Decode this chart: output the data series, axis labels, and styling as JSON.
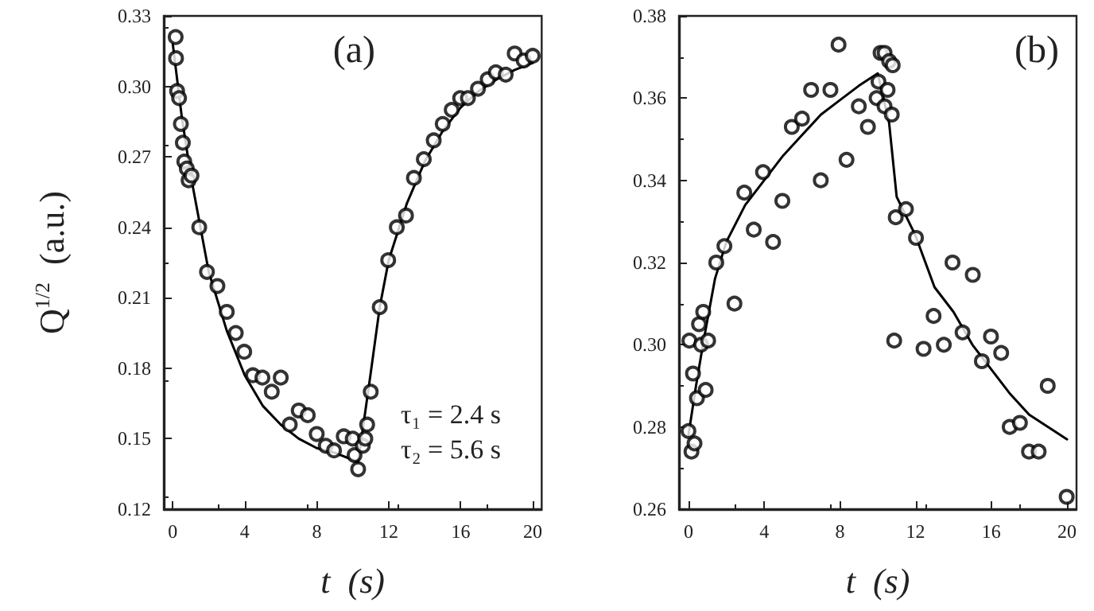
{
  "chart_data": [
    {
      "type": "scatter",
      "xlabel": "t  (s)",
      "ylabel": "Q$^{1/2}$  (a.u.)",
      "annotations": [
        "(a)",
        "τ₁ = 2.4 s",
        "τ₂ = 5.6 s"
      ],
      "xlim": [
        -0.5,
        20.5
      ],
      "xticks": [
        0,
        4,
        8,
        12,
        16,
        20
      ],
      "ylim": [
        0.12,
        0.33
      ],
      "yticks": [
        {
          "value": 0.12,
          "label": "0.12"
        },
        {
          "value": 0.15,
          "label": "0.15"
        },
        {
          "value": 0.18,
          "label": "0.18"
        },
        {
          "value": 0.21,
          "label": "0.21"
        },
        {
          "value": 0.24,
          "label": "0.24"
        },
        {
          "value": 0.27,
          "label": "0.27"
        },
        {
          "value": 0.3,
          "label": "0.30"
        },
        {
          "value": 0.33,
          "label": "0.33"
        }
      ],
      "series": [
        {
          "marker": "circle",
          "color": "#000000",
          "x": [
            0.16,
            0.18,
            0.24,
            0.35,
            0.45,
            0.56,
            0.64,
            0.78,
            0.88,
            1.04,
            1.47,
            1.9,
            2.48,
            3.0,
            3.5,
            3.97,
            4.45,
            4.98,
            5.5,
            6.0,
            6.5,
            7.0,
            7.5,
            8.0,
            8.5,
            8.96,
            9.5,
            10.0,
            10.1,
            10.3,
            10.56,
            10.7,
            10.8,
            11.0,
            11.5,
            11.97,
            12.45,
            12.96,
            13.4,
            13.95,
            14.5,
            15.0,
            15.5,
            15.97,
            16.4,
            16.96,
            17.5,
            17.95,
            18.5,
            19.0,
            19.5,
            20.0
          ],
          "values": [
            0.321,
            0.312,
            0.298,
            0.295,
            0.284,
            0.276,
            0.268,
            0.265,
            0.26,
            0.262,
            0.24,
            0.221,
            0.215,
            0.204,
            0.195,
            0.187,
            0.177,
            0.176,
            0.17,
            0.176,
            0.156,
            0.162,
            0.16,
            0.152,
            0.147,
            0.145,
            0.151,
            0.15,
            0.143,
            0.137,
            0.147,
            0.15,
            0.156,
            0.17,
            0.206,
            0.226,
            0.24,
            0.245,
            0.261,
            0.269,
            0.277,
            0.284,
            0.29,
            0.295,
            0.295,
            0.299,
            0.303,
            0.306,
            0.305,
            0.314,
            0.311,
            0.313
          ]
        },
        {
          "type": "line",
          "marker": "none",
          "line_style": "solid",
          "color": "#000000",
          "x": [
            0,
            0.5,
            1,
            2,
            3,
            4,
            5,
            6,
            7,
            8,
            9,
            10,
            10.3,
            11,
            11.5,
            12,
            13,
            14,
            15,
            16,
            17,
            18,
            19,
            20
          ],
          "values": [
            0.318,
            0.287,
            0.262,
            0.221,
            0.196,
            0.177,
            0.164,
            0.156,
            0.15,
            0.146,
            0.144,
            0.141,
            0.14,
            0.178,
            0.206,
            0.226,
            0.25,
            0.268,
            0.281,
            0.291,
            0.298,
            0.303,
            0.307,
            0.31
          ]
        }
      ]
    },
    {
      "type": "scatter",
      "xlabel": "t  (s)",
      "annotations": [
        "(b)"
      ],
      "xlim": [
        -0.5,
        20.5
      ],
      "xticks": [
        0,
        4,
        8,
        12,
        16,
        20
      ],
      "ylim": [
        0.26,
        0.38
      ],
      "yticks": [
        {
          "value": 0.26,
          "label": "0.26"
        },
        {
          "value": 0.28,
          "label": "0.28"
        },
        {
          "value": 0.3,
          "label": "0.30"
        },
        {
          "value": 0.32,
          "label": "0.32"
        },
        {
          "value": 0.34,
          "label": "0.34"
        },
        {
          "value": 0.36,
          "label": "0.36"
        },
        {
          "value": 0.38,
          "label": "0.38"
        }
      ],
      "series": [
        {
          "marker": "circle",
          "color": "#000000",
          "x": [
            0,
            0.05,
            0.16,
            0.24,
            0.32,
            0.45,
            0.56,
            0.67,
            0.78,
            0.91,
            1.04,
            1.47,
            1.9,
            2.43,
            2.95,
            3.45,
            3.94,
            4.47,
            4.96,
            5.46,
            6.0,
            6.48,
            6.99,
            7.5,
            7.93,
            8.35,
            9.0,
            9.48,
            9.94,
            10.04,
            10.15,
            10.36,
            10.36,
            10.52,
            10.6,
            10.74,
            10.79,
            10.87,
            10.95,
            11.49,
            12.02,
            12.42,
            12.95,
            13.49,
            13.95,
            14.48,
            15.02,
            15.5,
            15.98,
            16.52,
            16.97,
            17.51,
            17.99,
            18.5,
            18.98,
            19.98
          ],
          "values": [
            0.279,
            0.301,
            0.274,
            0.293,
            0.276,
            0.287,
            0.305,
            0.3,
            0.308,
            0.289,
            0.301,
            0.32,
            0.324,
            0.31,
            0.337,
            0.328,
            0.342,
            0.325,
            0.335,
            0.353,
            0.355,
            0.362,
            0.34,
            0.362,
            0.373,
            0.345,
            0.358,
            0.353,
            0.36,
            0.364,
            0.371,
            0.371,
            0.358,
            0.362,
            0.369,
            0.356,
            0.368,
            0.301,
            0.331,
            0.333,
            0.326,
            0.299,
            0.307,
            0.3,
            0.32,
            0.303,
            0.317,
            0.296,
            0.302,
            0.298,
            0.28,
            0.281,
            0.274,
            0.274,
            0.29,
            0.263
          ]
        },
        {
          "type": "line",
          "marker": "none",
          "line_style": "solid",
          "color": "#000000",
          "x": [
            0,
            0.4,
            0.8,
            1.4,
            2,
            3,
            4,
            5,
            6,
            7,
            8,
            9,
            10,
            10.6,
            11,
            12,
            13,
            14,
            15,
            16,
            17,
            18,
            19,
            20
          ],
          "values": [
            0.278,
            0.29,
            0.301,
            0.316,
            0.325,
            0.334,
            0.34,
            0.346,
            0.351,
            0.356,
            0.3595,
            0.363,
            0.366,
            0.354,
            0.336,
            0.3265,
            0.314,
            0.308,
            0.3,
            0.294,
            0.288,
            0.283,
            0.28,
            0.277
          ]
        }
      ]
    }
  ]
}
